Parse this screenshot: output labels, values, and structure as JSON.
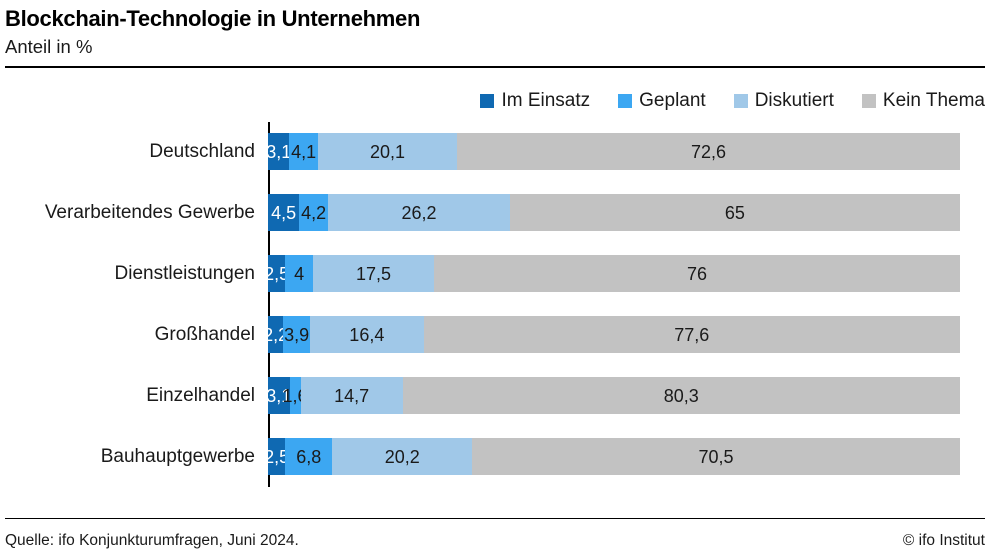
{
  "chart_data": {
    "type": "bar",
    "orientation": "horizontal",
    "stacked": true,
    "title": "Blockchain-Technologie in Unternehmen",
    "subtitle": "Anteil in %",
    "unit": "%",
    "xlim": [
      0,
      100
    ],
    "grid": false,
    "legend_position": "top-right",
    "value_labels": "inside",
    "categories": [
      "Deutschland",
      "Verarbeitendes Gewerbe",
      "Dienstleistungen",
      "Großhandel",
      "Einzelhandel",
      "Bauhauptgewerbe"
    ],
    "series": [
      {
        "name": "Im Einsatz",
        "color": "#0f69b2",
        "label_color": "#ffffff",
        "values": [
          3.1,
          4.5,
          2.5,
          2.2,
          3.1,
          2.5
        ],
        "labels": [
          "3,1",
          "4,5",
          "2,5",
          "2,2",
          "3,1",
          "2,5"
        ]
      },
      {
        "name": "Geplant",
        "color": "#3ca7f2",
        "label_color": "#1a1a1a",
        "values": [
          4.1,
          4.2,
          4,
          3.9,
          1.6,
          6.8
        ],
        "labels": [
          "4,1",
          "4,2",
          "4",
          "3,9",
          "1,6",
          "6,8"
        ]
      },
      {
        "name": "Diskutiert",
        "color": "#a0c8e8",
        "label_color": "#1a1a1a",
        "values": [
          20.1,
          26.2,
          17.5,
          16.4,
          14.7,
          20.2
        ],
        "labels": [
          "20,1",
          "26,2",
          "17,5",
          "16,4",
          "14,7",
          "20,2"
        ]
      },
      {
        "name": "Kein Thema",
        "color": "#c2c2c2",
        "label_color": "#1a1a1a",
        "values": [
          72.6,
          65,
          76,
          77.6,
          80.3,
          70.5
        ],
        "labels": [
          "72,6",
          "65",
          "76",
          "77,6",
          "80,3",
          "70,5"
        ]
      }
    ],
    "source": "Quelle: ifo Konjunkturumfragen, Juni 2024.",
    "copyright": "© ifo Institut"
  }
}
